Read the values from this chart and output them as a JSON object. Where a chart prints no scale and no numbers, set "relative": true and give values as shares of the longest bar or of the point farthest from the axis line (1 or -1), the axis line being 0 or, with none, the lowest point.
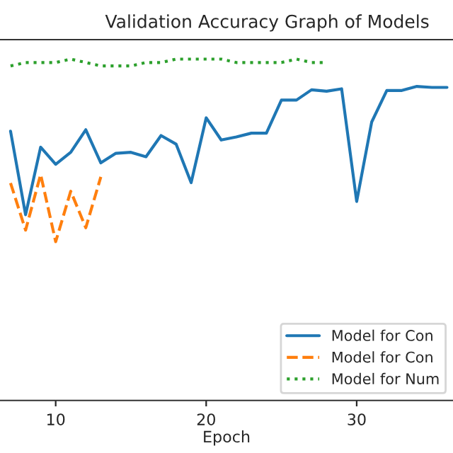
{
  "chart_data": {
    "type": "line",
    "title": "Validation Accuracy Graph of Models",
    "xlabel": "Epoch",
    "relative": true,
    "xlim": [
      6.3,
      36.4
    ],
    "xticks": [
      10,
      20,
      30
    ],
    "grid": false,
    "legend": "bottom right",
    "series": [
      {
        "name": "Model for Con",
        "color": "#1f77b4",
        "line_style": "solid",
        "x": [
          7,
          8,
          9,
          10,
          11,
          12,
          13,
          14,
          15,
          16,
          17,
          18,
          19,
          20,
          21,
          22,
          23,
          24,
          25,
          26,
          27,
          28,
          29,
          30,
          31,
          32,
          33,
          34,
          35,
          36
        ],
        "values": [
          0.789,
          0.544,
          0.742,
          0.692,
          0.727,
          0.793,
          0.696,
          0.724,
          0.727,
          0.714,
          0.776,
          0.751,
          0.638,
          0.828,
          0.763,
          0.772,
          0.783,
          0.783,
          0.88,
          0.88,
          0.91,
          0.906,
          0.913,
          0.583,
          0.816,
          0.908,
          0.908,
          0.92,
          0.917,
          0.917
        ]
      },
      {
        "name": "Model for Con",
        "color": "#ff7f0e",
        "line_style": "dashed",
        "x": [
          7,
          8,
          9,
          10,
          11,
          12,
          13
        ],
        "values": [
          0.637,
          0.499,
          0.662,
          0.465,
          0.613,
          0.506,
          0.655
        ]
      },
      {
        "name": "Model for Num",
        "color": "#2ca02c",
        "line_style": "dotted",
        "x": [
          7,
          8,
          9,
          10,
          11,
          12,
          13,
          14,
          15,
          16,
          17,
          18,
          19,
          20,
          21,
          22,
          23,
          24,
          25,
          26,
          27,
          28
        ],
        "values": [
          0.98,
          0.99,
          0.99,
          0.99,
          1.0,
          0.99,
          0.98,
          0.98,
          0.98,
          0.99,
          0.99,
          1.0,
          1.0,
          1.0,
          1.0,
          0.99,
          0.99,
          0.99,
          0.99,
          1.0,
          0.99,
          0.99
        ]
      }
    ]
  }
}
